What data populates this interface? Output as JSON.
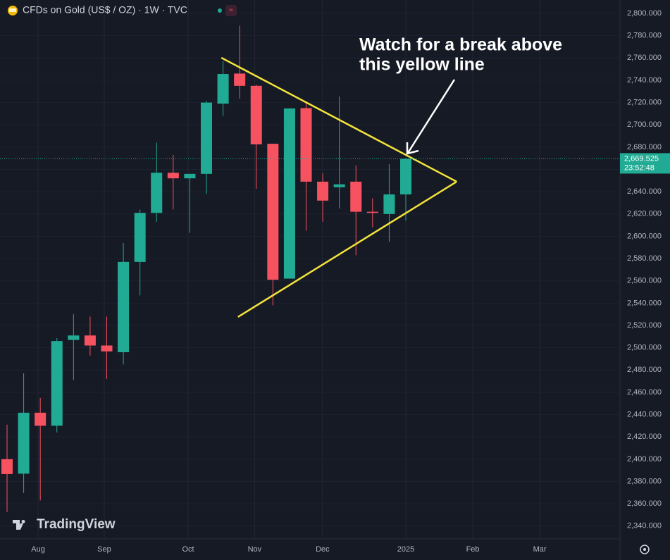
{
  "chart_data": {
    "type": "candlestick",
    "title": "CFDs on Gold (US$ / OZ) · 1W · TVC",
    "brand": "TradingView",
    "annotation": [
      "Watch for a break above",
      "this yellow line"
    ],
    "x": [
      0,
      1,
      2,
      3,
      4,
      5,
      6,
      7,
      8,
      9,
      10,
      11,
      12,
      13,
      14,
      15,
      16,
      17,
      18,
      19,
      20,
      21,
      22,
      23,
      24
    ],
    "open": [
      2400,
      2387,
      2441.7,
      2430,
      2507,
      2511,
      2502,
      2496,
      2577,
      2621,
      2657,
      2652,
      2656,
      2719,
      2746,
      2735,
      2683,
      2562,
      2715,
      2649,
      2644,
      2649,
      2622,
      2620,
      2637.6
    ],
    "high": [
      2431,
      2477,
      2455,
      2508.6,
      2530,
      2528,
      2528,
      2594,
      2624,
      2684,
      2673,
      2656,
      2721.6,
      2757,
      2789,
      2736,
      2683,
      2715,
      2720,
      2656.5,
      2725.4,
      2663.5,
      2634,
      2664.8,
      2670
    ],
    "low": [
      2352.6,
      2369.7,
      2363,
      2424,
      2471,
      2493,
      2472,
      2485,
      2547,
      2613,
      2624,
      2603,
      2638,
      2708,
      2723.6,
      2642.6,
      2538,
      2562,
      2605,
      2613,
      2625,
      2583,
      2608,
      2595,
      2614
    ],
    "close": [
      2386.7,
      2441.7,
      2430,
      2506,
      2511,
      2502,
      2496.7,
      2577,
      2621,
      2657,
      2652,
      2656,
      2720,
      2745.6,
      2735,
      2682.5,
      2561,
      2714.7,
      2649,
      2632,
      2646.6,
      2622,
      2621,
      2637.6,
      2669.525
    ],
    "up_color": "#22ab94",
    "down_color": "#f7525f",
    "trendlines": [
      {
        "color": "#f2e33b",
        "x": [
          12.9,
          27.06
        ],
        "y": [
          2760.2,
          2649
        ]
      },
      {
        "color": "#f2e33b",
        "x": [
          13.9,
          27.06
        ],
        "y": [
          2527.6,
          2649
        ]
      }
    ],
    "last_price": {
      "value": 2669.525,
      "label": "2,669.525"
    },
    "countdown": "23:52:48",
    "xlim": [
      -0.424,
      36.89
    ],
    "ylim": [
      2328.5,
      2812
    ],
    "xticks": [
      {
        "value": 1.87,
        "label": "Aug"
      },
      {
        "value": 5.85,
        "label": "Sep"
      },
      {
        "value": 10.9,
        "label": "Oct"
      },
      {
        "value": 14.9,
        "label": "Nov"
      },
      {
        "value": 18.99,
        "label": "Dec"
      },
      {
        "value": 24,
        "label": "2025"
      },
      {
        "value": 28.03,
        "label": "Feb"
      },
      {
        "value": 32.06,
        "label": "Mar"
      }
    ],
    "yticks": [
      {
        "value": 2340,
        "label": "2,340.000"
      },
      {
        "value": 2360,
        "label": "2,360.000"
      },
      {
        "value": 2380,
        "label": "2,380.000"
      },
      {
        "value": 2400,
        "label": "2,400.000"
      },
      {
        "value": 2420,
        "label": "2,420.000"
      },
      {
        "value": 2440,
        "label": "2,440.000"
      },
      {
        "value": 2460,
        "label": "2,460.000"
      },
      {
        "value": 2480,
        "label": "2,480.000"
      },
      {
        "value": 2500,
        "label": "2,500.000"
      },
      {
        "value": 2520,
        "label": "2,520.000"
      },
      {
        "value": 2540,
        "label": "2,540.000"
      },
      {
        "value": 2560,
        "label": "2,560.000"
      },
      {
        "value": 2580,
        "label": "2,580.000"
      },
      {
        "value": 2600,
        "label": "2,600.000"
      },
      {
        "value": 2620,
        "label": "2,620.000"
      },
      {
        "value": 2640,
        "label": "2,640.000"
      },
      {
        "value": 2660,
        "label": "2,660.000"
      },
      {
        "value": 2680,
        "label": "2,680.000"
      },
      {
        "value": 2700,
        "label": "2,700.000"
      },
      {
        "value": 2720,
        "label": "2,720.000"
      },
      {
        "value": 2740,
        "label": "2,740.000"
      },
      {
        "value": 2760,
        "label": "2,760.000"
      },
      {
        "value": 2780,
        "label": "2,780.000"
      },
      {
        "value": 2800,
        "label": "2,800.000"
      }
    ],
    "grid": true
  }
}
